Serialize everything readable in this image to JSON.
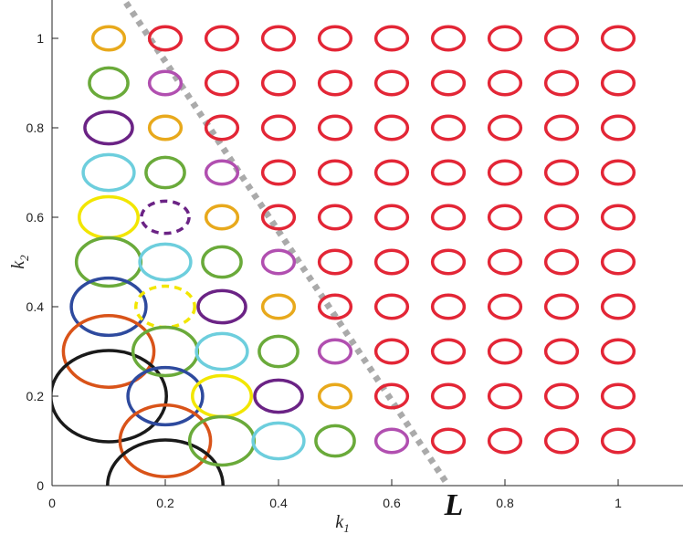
{
  "chart_data": {
    "type": "scatter",
    "xlabel_base": "k",
    "xlabel_sub": "1",
    "ylabel_base": "k",
    "ylabel_sub": "2",
    "xlim": [
      0,
      1.1
    ],
    "ylim": [
      0,
      1.1
    ],
    "x_ticks": [
      0,
      0.2,
      0.4,
      0.6,
      0.8,
      1
    ],
    "y_ticks": [
      0,
      0.2,
      0.4,
      0.6,
      0.8,
      1
    ],
    "x_tick_labels": [
      "0",
      "0.2",
      "0.4",
      "0.6",
      "0.8",
      "1"
    ],
    "y_tick_labels": [
      "0",
      "0.2",
      "0.4",
      "0.6",
      "0.8",
      "1"
    ],
    "grid": false,
    "boundary_line": {
      "label": "L",
      "color": "#aaaaaa",
      "style": "dotted",
      "points": [
        [
          0.12,
          1.1
        ],
        [
          0.7,
          0.0
        ]
      ]
    },
    "colors": {
      "red": "#e32636",
      "orange": "#e8a91c",
      "green": "#6aaa3a",
      "magenta": "#b14fb0",
      "purple": "#6b2385",
      "cyan": "#6dcedd",
      "yellow": "#f2e600",
      "blue": "#2e4a9e",
      "dark_orange": "#d95319",
      "black": "#1a1a1a"
    },
    "ellipses": [
      {
        "x": 0.1,
        "y": 1.0,
        "rx": 0.028,
        "ry": 0.026,
        "color": "orange"
      },
      {
        "x": 0.1,
        "y": 0.9,
        "rx": 0.034,
        "ry": 0.034,
        "color": "green"
      },
      {
        "x": 0.1,
        "y": 0.8,
        "rx": 0.042,
        "ry": 0.036,
        "color": "purple"
      },
      {
        "x": 0.1,
        "y": 0.7,
        "rx": 0.045,
        "ry": 0.04,
        "color": "cyan"
      },
      {
        "x": 0.1,
        "y": 0.6,
        "rx": 0.052,
        "ry": 0.046,
        "color": "yellow"
      },
      {
        "x": 0.1,
        "y": 0.5,
        "rx": 0.057,
        "ry": 0.054,
        "color": "green"
      },
      {
        "x": 0.1,
        "y": 0.4,
        "rx": 0.066,
        "ry": 0.064,
        "color": "blue"
      },
      {
        "x": 0.1,
        "y": 0.3,
        "rx": 0.08,
        "ry": 0.08,
        "color": "dark_orange"
      },
      {
        "x": 0.1,
        "y": 0.2,
        "rx": 0.102,
        "ry": 0.102,
        "color": "black"
      },
      {
        "x": 0.2,
        "y": 1.0,
        "rx": 0.028,
        "ry": 0.026,
        "color": "red"
      },
      {
        "x": 0.2,
        "y": 0.9,
        "rx": 0.028,
        "ry": 0.026,
        "color": "magenta"
      },
      {
        "x": 0.2,
        "y": 0.8,
        "rx": 0.028,
        "ry": 0.026,
        "color": "orange"
      },
      {
        "x": 0.2,
        "y": 0.7,
        "rx": 0.034,
        "ry": 0.034,
        "color": "green"
      },
      {
        "x": 0.2,
        "y": 0.6,
        "rx": 0.042,
        "ry": 0.036,
        "color": "purple",
        "dashed": true
      },
      {
        "x": 0.2,
        "y": 0.5,
        "rx": 0.045,
        "ry": 0.04,
        "color": "cyan"
      },
      {
        "x": 0.2,
        "y": 0.4,
        "rx": 0.052,
        "ry": 0.046,
        "color": "yellow",
        "dashed": true
      },
      {
        "x": 0.2,
        "y": 0.3,
        "rx": 0.057,
        "ry": 0.054,
        "color": "green"
      },
      {
        "x": 0.2,
        "y": 0.2,
        "rx": 0.066,
        "ry": 0.064,
        "color": "blue"
      },
      {
        "x": 0.2,
        "y": 0.1,
        "rx": 0.08,
        "ry": 0.08,
        "color": "dark_orange"
      },
      {
        "x": 0.2,
        "y": 0.0,
        "rx": 0.102,
        "ry": 0.102,
        "color": "black"
      },
      {
        "x": 0.3,
        "y": 1.0,
        "rx": 0.028,
        "ry": 0.026,
        "color": "red"
      },
      {
        "x": 0.3,
        "y": 0.9,
        "rx": 0.028,
        "ry": 0.026,
        "color": "red"
      },
      {
        "x": 0.3,
        "y": 0.8,
        "rx": 0.028,
        "ry": 0.026,
        "color": "red"
      },
      {
        "x": 0.3,
        "y": 0.7,
        "rx": 0.028,
        "ry": 0.026,
        "color": "magenta"
      },
      {
        "x": 0.3,
        "y": 0.6,
        "rx": 0.028,
        "ry": 0.026,
        "color": "orange"
      },
      {
        "x": 0.3,
        "y": 0.5,
        "rx": 0.034,
        "ry": 0.034,
        "color": "green"
      },
      {
        "x": 0.3,
        "y": 0.4,
        "rx": 0.042,
        "ry": 0.036,
        "color": "purple"
      },
      {
        "x": 0.3,
        "y": 0.3,
        "rx": 0.045,
        "ry": 0.04,
        "color": "cyan"
      },
      {
        "x": 0.3,
        "y": 0.2,
        "rx": 0.052,
        "ry": 0.046,
        "color": "yellow"
      },
      {
        "x": 0.3,
        "y": 0.1,
        "rx": 0.057,
        "ry": 0.054,
        "color": "green"
      },
      {
        "x": 0.4,
        "y": 1.0,
        "rx": 0.028,
        "ry": 0.026,
        "color": "red"
      },
      {
        "x": 0.4,
        "y": 0.9,
        "rx": 0.028,
        "ry": 0.026,
        "color": "red"
      },
      {
        "x": 0.4,
        "y": 0.8,
        "rx": 0.028,
        "ry": 0.026,
        "color": "red"
      },
      {
        "x": 0.4,
        "y": 0.7,
        "rx": 0.028,
        "ry": 0.026,
        "color": "red"
      },
      {
        "x": 0.4,
        "y": 0.6,
        "rx": 0.028,
        "ry": 0.026,
        "color": "red"
      },
      {
        "x": 0.4,
        "y": 0.5,
        "rx": 0.028,
        "ry": 0.026,
        "color": "magenta"
      },
      {
        "x": 0.4,
        "y": 0.4,
        "rx": 0.028,
        "ry": 0.026,
        "color": "orange"
      },
      {
        "x": 0.4,
        "y": 0.3,
        "rx": 0.034,
        "ry": 0.034,
        "color": "green"
      },
      {
        "x": 0.4,
        "y": 0.2,
        "rx": 0.042,
        "ry": 0.036,
        "color": "purple"
      },
      {
        "x": 0.4,
        "y": 0.1,
        "rx": 0.045,
        "ry": 0.04,
        "color": "cyan"
      },
      {
        "x": 0.5,
        "y": 1.0,
        "rx": 0.028,
        "ry": 0.026,
        "color": "red"
      },
      {
        "x": 0.5,
        "y": 0.9,
        "rx": 0.028,
        "ry": 0.026,
        "color": "red"
      },
      {
        "x": 0.5,
        "y": 0.8,
        "rx": 0.028,
        "ry": 0.026,
        "color": "red"
      },
      {
        "x": 0.5,
        "y": 0.7,
        "rx": 0.028,
        "ry": 0.026,
        "color": "red"
      },
      {
        "x": 0.5,
        "y": 0.6,
        "rx": 0.028,
        "ry": 0.026,
        "color": "red"
      },
      {
        "x": 0.5,
        "y": 0.5,
        "rx": 0.028,
        "ry": 0.026,
        "color": "red"
      },
      {
        "x": 0.5,
        "y": 0.4,
        "rx": 0.028,
        "ry": 0.026,
        "color": "red"
      },
      {
        "x": 0.5,
        "y": 0.3,
        "rx": 0.028,
        "ry": 0.026,
        "color": "magenta"
      },
      {
        "x": 0.5,
        "y": 0.2,
        "rx": 0.028,
        "ry": 0.026,
        "color": "orange"
      },
      {
        "x": 0.5,
        "y": 0.1,
        "rx": 0.034,
        "ry": 0.034,
        "color": "green"
      },
      {
        "x": 0.6,
        "y": 1.0,
        "rx": 0.028,
        "ry": 0.026,
        "color": "red"
      },
      {
        "x": 0.6,
        "y": 0.9,
        "rx": 0.028,
        "ry": 0.026,
        "color": "red"
      },
      {
        "x": 0.6,
        "y": 0.8,
        "rx": 0.028,
        "ry": 0.026,
        "color": "red"
      },
      {
        "x": 0.6,
        "y": 0.7,
        "rx": 0.028,
        "ry": 0.026,
        "color": "red"
      },
      {
        "x": 0.6,
        "y": 0.6,
        "rx": 0.028,
        "ry": 0.026,
        "color": "red"
      },
      {
        "x": 0.6,
        "y": 0.5,
        "rx": 0.028,
        "ry": 0.026,
        "color": "red"
      },
      {
        "x": 0.6,
        "y": 0.4,
        "rx": 0.028,
        "ry": 0.026,
        "color": "red"
      },
      {
        "x": 0.6,
        "y": 0.3,
        "rx": 0.028,
        "ry": 0.026,
        "color": "red"
      },
      {
        "x": 0.6,
        "y": 0.2,
        "rx": 0.028,
        "ry": 0.026,
        "color": "red"
      },
      {
        "x": 0.6,
        "y": 0.1,
        "rx": 0.028,
        "ry": 0.026,
        "color": "magenta"
      },
      {
        "x": 0.7,
        "y": 1.0,
        "rx": 0.028,
        "ry": 0.026,
        "color": "red"
      },
      {
        "x": 0.7,
        "y": 0.9,
        "rx": 0.028,
        "ry": 0.026,
        "color": "red"
      },
      {
        "x": 0.7,
        "y": 0.8,
        "rx": 0.028,
        "ry": 0.026,
        "color": "red"
      },
      {
        "x": 0.7,
        "y": 0.7,
        "rx": 0.028,
        "ry": 0.026,
        "color": "red"
      },
      {
        "x": 0.7,
        "y": 0.6,
        "rx": 0.028,
        "ry": 0.026,
        "color": "red"
      },
      {
        "x": 0.7,
        "y": 0.5,
        "rx": 0.028,
        "ry": 0.026,
        "color": "red"
      },
      {
        "x": 0.7,
        "y": 0.4,
        "rx": 0.028,
        "ry": 0.026,
        "color": "red"
      },
      {
        "x": 0.7,
        "y": 0.3,
        "rx": 0.028,
        "ry": 0.026,
        "color": "red"
      },
      {
        "x": 0.7,
        "y": 0.2,
        "rx": 0.028,
        "ry": 0.026,
        "color": "red"
      },
      {
        "x": 0.7,
        "y": 0.1,
        "rx": 0.028,
        "ry": 0.026,
        "color": "red"
      },
      {
        "x": 0.8,
        "y": 1.0,
        "rx": 0.028,
        "ry": 0.026,
        "color": "red"
      },
      {
        "x": 0.8,
        "y": 0.9,
        "rx": 0.028,
        "ry": 0.026,
        "color": "red"
      },
      {
        "x": 0.8,
        "y": 0.8,
        "rx": 0.028,
        "ry": 0.026,
        "color": "red"
      },
      {
        "x": 0.8,
        "y": 0.7,
        "rx": 0.028,
        "ry": 0.026,
        "color": "red"
      },
      {
        "x": 0.8,
        "y": 0.6,
        "rx": 0.028,
        "ry": 0.026,
        "color": "red"
      },
      {
        "x": 0.8,
        "y": 0.5,
        "rx": 0.028,
        "ry": 0.026,
        "color": "red"
      },
      {
        "x": 0.8,
        "y": 0.4,
        "rx": 0.028,
        "ry": 0.026,
        "color": "red"
      },
      {
        "x": 0.8,
        "y": 0.3,
        "rx": 0.028,
        "ry": 0.026,
        "color": "red"
      },
      {
        "x": 0.8,
        "y": 0.2,
        "rx": 0.028,
        "ry": 0.026,
        "color": "red"
      },
      {
        "x": 0.8,
        "y": 0.1,
        "rx": 0.028,
        "ry": 0.026,
        "color": "red"
      },
      {
        "x": 0.9,
        "y": 1.0,
        "rx": 0.028,
        "ry": 0.026,
        "color": "red"
      },
      {
        "x": 0.9,
        "y": 0.9,
        "rx": 0.028,
        "ry": 0.026,
        "color": "red"
      },
      {
        "x": 0.9,
        "y": 0.8,
        "rx": 0.028,
        "ry": 0.026,
        "color": "red"
      },
      {
        "x": 0.9,
        "y": 0.7,
        "rx": 0.028,
        "ry": 0.026,
        "color": "red"
      },
      {
        "x": 0.9,
        "y": 0.6,
        "rx": 0.028,
        "ry": 0.026,
        "color": "red"
      },
      {
        "x": 0.9,
        "y": 0.5,
        "rx": 0.028,
        "ry": 0.026,
        "color": "red"
      },
      {
        "x": 0.9,
        "y": 0.4,
        "rx": 0.028,
        "ry": 0.026,
        "color": "red"
      },
      {
        "x": 0.9,
        "y": 0.3,
        "rx": 0.028,
        "ry": 0.026,
        "color": "red"
      },
      {
        "x": 0.9,
        "y": 0.2,
        "rx": 0.028,
        "ry": 0.026,
        "color": "red"
      },
      {
        "x": 0.9,
        "y": 0.1,
        "rx": 0.028,
        "ry": 0.026,
        "color": "red"
      },
      {
        "x": 1.0,
        "y": 1.0,
        "rx": 0.028,
        "ry": 0.026,
        "color": "red"
      },
      {
        "x": 1.0,
        "y": 0.9,
        "rx": 0.028,
        "ry": 0.026,
        "color": "red"
      },
      {
        "x": 1.0,
        "y": 0.8,
        "rx": 0.028,
        "ry": 0.026,
        "color": "red"
      },
      {
        "x": 1.0,
        "y": 0.7,
        "rx": 0.028,
        "ry": 0.026,
        "color": "red"
      },
      {
        "x": 1.0,
        "y": 0.6,
        "rx": 0.028,
        "ry": 0.026,
        "color": "red"
      },
      {
        "x": 1.0,
        "y": 0.5,
        "rx": 0.028,
        "ry": 0.026,
        "color": "red"
      },
      {
        "x": 1.0,
        "y": 0.4,
        "rx": 0.028,
        "ry": 0.026,
        "color": "red"
      },
      {
        "x": 1.0,
        "y": 0.3,
        "rx": 0.028,
        "ry": 0.026,
        "color": "red"
      },
      {
        "x": 1.0,
        "y": 0.2,
        "rx": 0.028,
        "ry": 0.026,
        "color": "red"
      },
      {
        "x": 1.0,
        "y": 0.1,
        "rx": 0.028,
        "ry": 0.026,
        "color": "red"
      }
    ]
  }
}
